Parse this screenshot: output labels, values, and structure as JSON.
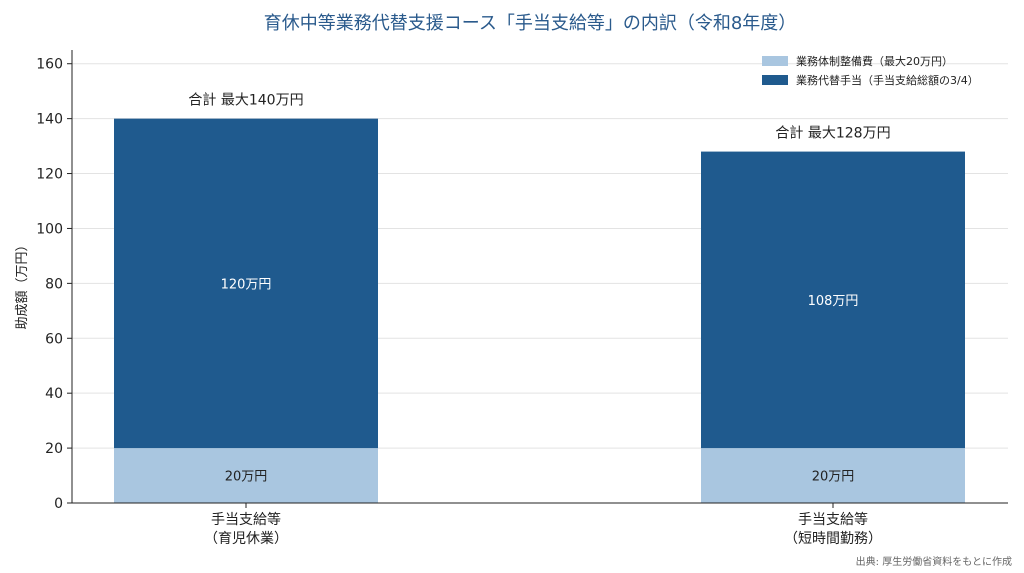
{
  "chart_data": {
    "type": "bar",
    "stacked": true,
    "title": "育休中等業務代替支援コース「手当支給等」の内訳（令和8年度）",
    "ylabel": "助成額（万円）",
    "xlabel": "",
    "ylim": [
      0,
      165
    ],
    "yticks": [
      0,
      20,
      40,
      60,
      80,
      100,
      120,
      140,
      160
    ],
    "grid": true,
    "legend_position": "top-right",
    "categories": [
      {
        "line1": "手当支給等",
        "line2": "（育児休業）"
      },
      {
        "line1": "手当支給等",
        "line2": "（短時間勤務）"
      }
    ],
    "series": [
      {
        "name": "業務体制整備費（最大20万円）",
        "color": "#a9c6e0",
        "values": [
          20,
          20
        ],
        "labels": [
          "20万円",
          "20万円"
        ]
      },
      {
        "name": "業務代替手当（手当支給総額の3/4）",
        "color": "#1f5a8e",
        "values": [
          120,
          108
        ],
        "labels": [
          "120万円",
          "108万円"
        ]
      }
    ],
    "totals": [
      "合計 最大140万円",
      "合計 最大128万円"
    ],
    "source": "出典: 厚生労働省資料をもとに作成"
  }
}
